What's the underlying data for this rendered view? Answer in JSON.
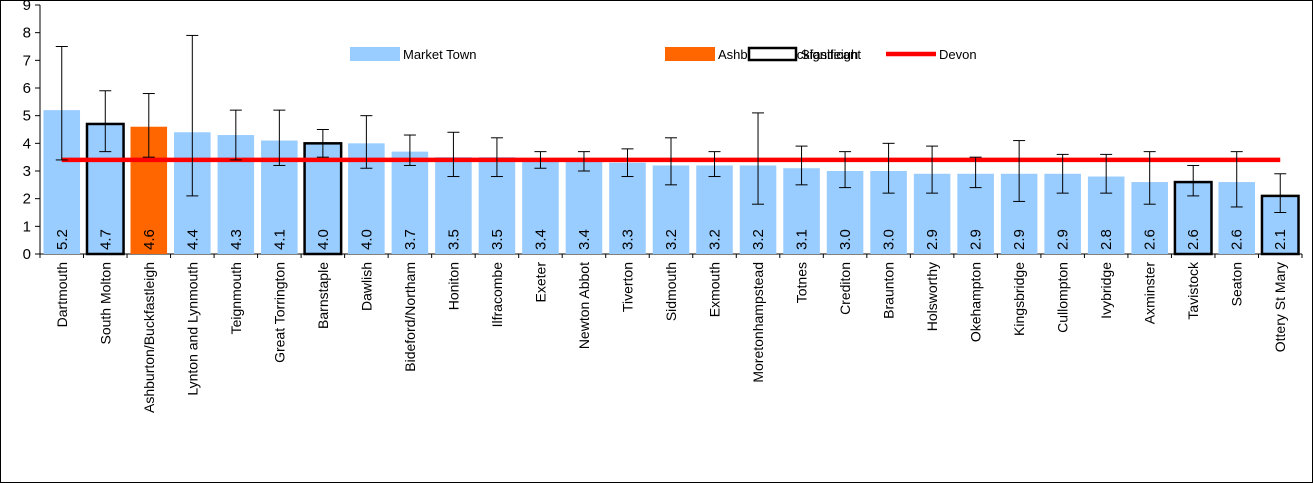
{
  "chart_data": {
    "type": "bar",
    "title": "",
    "xlabel": "",
    "ylabel": "",
    "ylim": [
      0,
      9
    ],
    "yticks": [
      0,
      1,
      2,
      3,
      4,
      5,
      6,
      7,
      8,
      9
    ],
    "legend_position": "top-center",
    "legend": [
      {
        "label": "Market Town",
        "kind": "fill",
        "color": "#99CCFF"
      },
      {
        "label": "Ashburton/Buckfastleigh",
        "kind": "fill",
        "color": "#FF6600"
      },
      {
        "label": "Significant",
        "kind": "outline",
        "color": "#000000"
      },
      {
        "label": "Devon",
        "kind": "line",
        "color": "#FF0000"
      }
    ],
    "reference_line": {
      "name": "Devon",
      "value": 3.4,
      "color": "#FF0000"
    },
    "colors": {
      "market_town": "#99CCFF",
      "highlight": "#FF6600",
      "reference": "#FF0000"
    },
    "categories": [
      "Dartmouth",
      "South Molton",
      "Ashburton/Buckfastleigh",
      "Lynton and Lynmouth",
      "Teignmouth",
      "Great Torrington",
      "Barnstaple",
      "Dawlish",
      "Bideford/Northam",
      "Honiton",
      "Ilfracombe",
      "Exeter",
      "Newton Abbot",
      "Tiverton",
      "Sidmouth",
      "Exmouth",
      "Moretonhampstead",
      "Totnes",
      "Crediton",
      "Braunton",
      "Holsworthy",
      "Okehampton",
      "Kingsbridge",
      "Cullompton",
      "Ivybridge",
      "Axminster",
      "Tavistock",
      "Seaton",
      "Ottery St Mary"
    ],
    "values": [
      5.2,
      4.7,
      4.6,
      4.4,
      4.3,
      4.1,
      4.0,
      4.0,
      3.7,
      3.5,
      3.5,
      3.4,
      3.4,
      3.3,
      3.2,
      3.2,
      3.2,
      3.1,
      3.0,
      3.0,
      2.9,
      2.9,
      2.9,
      2.9,
      2.8,
      2.6,
      2.6,
      2.6,
      2.1
    ],
    "value_labels": [
      "5.2",
      "4.7",
      "4.6",
      "4.4",
      "4.3",
      "4.1",
      "4.0",
      "4.0",
      "3.7",
      "3.5",
      "3.5",
      "3.4",
      "3.4",
      "3.3",
      "3.2",
      "3.2",
      "3.2",
      "3.1",
      "3.0",
      "3.0",
      "2.9",
      "2.9",
      "2.9",
      "2.9",
      "2.8",
      "2.6",
      "2.6",
      "2.6",
      "2.1"
    ],
    "error_low": [
      3.4,
      3.7,
      3.5,
      2.1,
      3.4,
      3.2,
      3.5,
      3.1,
      3.2,
      2.8,
      2.8,
      3.1,
      3.0,
      2.8,
      2.5,
      2.8,
      1.8,
      2.5,
      2.4,
      2.2,
      2.2,
      2.4,
      1.9,
      2.2,
      2.2,
      1.8,
      2.1,
      1.7,
      1.5
    ],
    "error_high": [
      7.5,
      5.9,
      5.8,
      7.9,
      5.2,
      5.2,
      4.5,
      5.0,
      4.3,
      4.4,
      4.2,
      3.7,
      3.7,
      3.8,
      4.2,
      3.7,
      5.1,
      3.9,
      3.7,
      4.0,
      3.9,
      3.5,
      4.1,
      3.6,
      3.6,
      3.7,
      3.2,
      3.7,
      2.9
    ],
    "bar_style": [
      "normal",
      "significant",
      "highlight",
      "normal",
      "normal",
      "normal",
      "significant",
      "normal",
      "normal",
      "normal",
      "normal",
      "normal",
      "normal",
      "normal",
      "normal",
      "normal",
      "normal",
      "normal",
      "normal",
      "normal",
      "normal",
      "normal",
      "normal",
      "normal",
      "normal",
      "normal",
      "significant",
      "normal",
      "significant"
    ]
  }
}
